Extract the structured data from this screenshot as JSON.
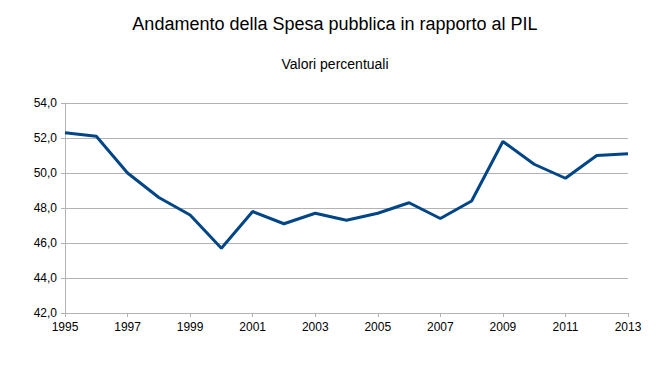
{
  "chart_data": {
    "type": "line",
    "title": "Andamento della Spesa pubblica in rapporto al PIL",
    "subtitle": "Valori percentuali",
    "x": [
      1995,
      1996,
      1997,
      1998,
      1999,
      2000,
      2001,
      2002,
      2003,
      2004,
      2005,
      2006,
      2007,
      2008,
      2009,
      2010,
      2011,
      2012,
      2013
    ],
    "values": [
      52.3,
      52.1,
      50.0,
      48.6,
      47.6,
      45.7,
      47.8,
      47.1,
      47.7,
      47.3,
      47.7,
      48.3,
      47.4,
      48.4,
      51.8,
      50.5,
      49.7,
      51.0,
      51.1
    ],
    "color": "#004586",
    "xlim": [
      1995,
      2013
    ],
    "xticks": [
      1995,
      1997,
      1999,
      2001,
      2003,
      2005,
      2007,
      2009,
      2011,
      2013
    ],
    "ylim": [
      42,
      54
    ],
    "yticks": [
      {
        "value": 42,
        "label": "42,0"
      },
      {
        "value": 44,
        "label": "44,0"
      },
      {
        "value": 46,
        "label": "46,0"
      },
      {
        "value": 48,
        "label": "48,0"
      },
      {
        "value": 50,
        "label": "50,0"
      },
      {
        "value": 52,
        "label": "52,0"
      },
      {
        "value": 54,
        "label": "54,0"
      }
    ],
    "grid": true
  }
}
